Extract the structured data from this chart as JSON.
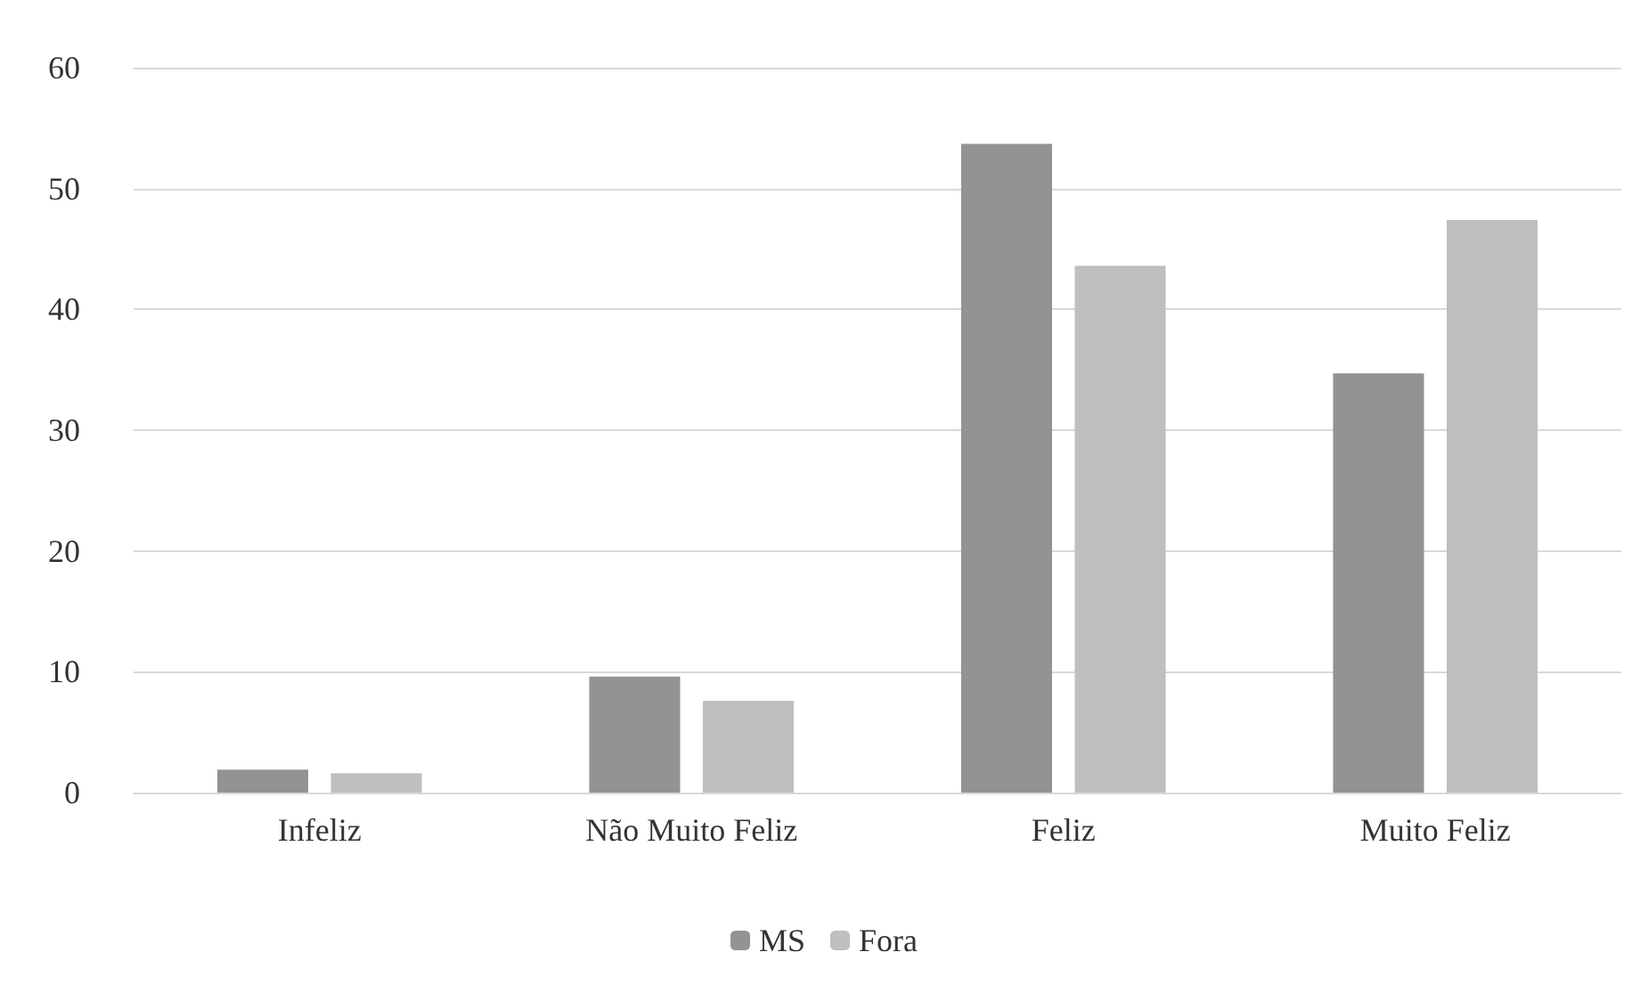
{
  "chart_data": {
    "type": "bar",
    "categories": [
      "Infeliz",
      "Não Muito Feliz",
      "Feliz",
      "Muito Feliz"
    ],
    "series": [
      {
        "name": "MS",
        "color": "#939393",
        "values": [
          1.9,
          9.6,
          53.7,
          34.7
        ]
      },
      {
        "name": "Fora",
        "color": "#bfbfbf",
        "values": [
          1.6,
          7.6,
          43.6,
          47.4
        ]
      }
    ],
    "ylim": [
      0,
      60
    ],
    "yticks": [
      0,
      10,
      20,
      30,
      40,
      50,
      60
    ],
    "grid": "y",
    "legend": "bottom"
  }
}
